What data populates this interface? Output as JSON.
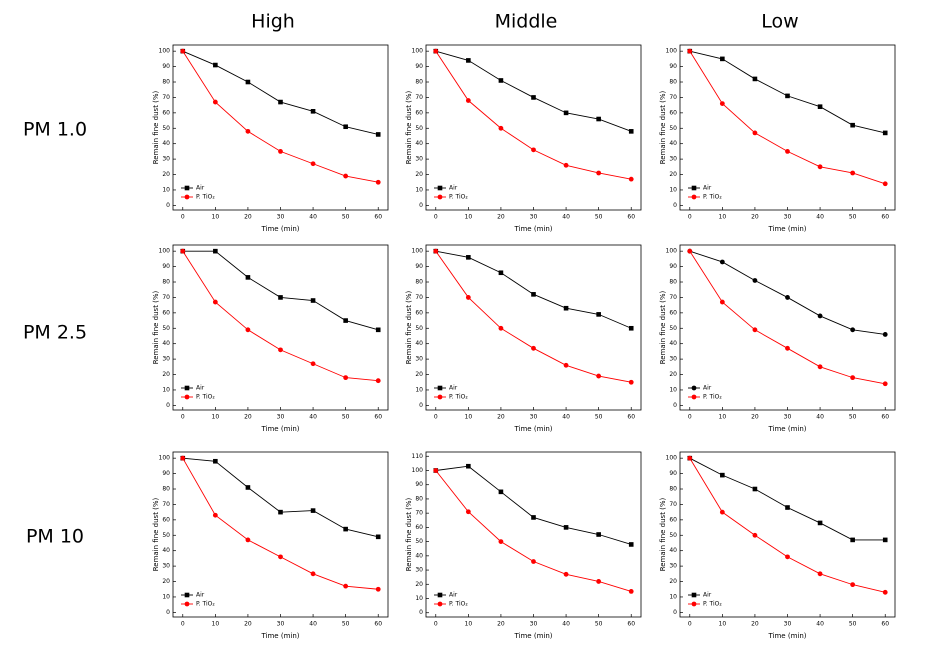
{
  "column_labels": [
    "High",
    "Middle",
    "Low"
  ],
  "row_labels": [
    "PM 1.0",
    "PM 2.5",
    "PM 10"
  ],
  "chart_data": [
    {
      "type": "line",
      "x_label": "Time (min)",
      "y_label": "Remain fine dust (%)",
      "x": [
        0,
        10,
        20,
        30,
        40,
        50,
        60
      ],
      "xlim": [
        -3,
        63
      ],
      "xticks": [
        0,
        10,
        20,
        30,
        40,
        50,
        60
      ],
      "ylim": [
        -3,
        104
      ],
      "yticks": [
        0,
        10,
        20,
        30,
        40,
        50,
        60,
        70,
        80,
        90,
        100
      ],
      "series": [
        {
          "name": "Air",
          "color": "#000000",
          "marker": "square",
          "values": [
            100,
            91,
            80,
            67,
            61,
            51,
            46
          ]
        },
        {
          "name": "P. TiO₂",
          "color": "#ff0000",
          "marker": "circle",
          "values": [
            100,
            67,
            48,
            35,
            27,
            19,
            15
          ]
        }
      ]
    },
    {
      "type": "line",
      "x_label": "Time (min)",
      "y_label": "Remain fine dust (%)",
      "x": [
        0,
        10,
        20,
        30,
        40,
        50,
        60
      ],
      "xlim": [
        -3,
        63
      ],
      "xticks": [
        0,
        10,
        20,
        30,
        40,
        50,
        60
      ],
      "ylim": [
        -3,
        104
      ],
      "yticks": [
        0,
        10,
        20,
        30,
        40,
        50,
        60,
        70,
        80,
        90,
        100
      ],
      "series": [
        {
          "name": "Air",
          "color": "#000000",
          "marker": "square",
          "values": [
            100,
            94,
            81,
            70,
            60,
            56,
            48
          ]
        },
        {
          "name": "P. TiO₂",
          "color": "#ff0000",
          "marker": "circle",
          "values": [
            100,
            68,
            50,
            36,
            26,
            21,
            17
          ]
        }
      ]
    },
    {
      "type": "line",
      "x_label": "Time (min)",
      "y_label": "Remain fine dust (%)",
      "x": [
        0,
        10,
        20,
        30,
        40,
        50,
        60
      ],
      "xlim": [
        -3,
        63
      ],
      "xticks": [
        0,
        10,
        20,
        30,
        40,
        50,
        60
      ],
      "ylim": [
        -3,
        104
      ],
      "yticks": [
        0,
        10,
        20,
        30,
        40,
        50,
        60,
        70,
        80,
        90,
        100
      ],
      "series": [
        {
          "name": "Air",
          "color": "#000000",
          "marker": "square",
          "values": [
            100,
            95,
            82,
            71,
            64,
            52,
            47
          ]
        },
        {
          "name": "P. TiO₂",
          "color": "#ff0000",
          "marker": "circle",
          "values": [
            100,
            66,
            47,
            35,
            25,
            21,
            14
          ]
        }
      ]
    },
    {
      "type": "line",
      "x_label": "Time (min)",
      "y_label": "Remain fine dust (%)",
      "x": [
        0,
        10,
        20,
        30,
        40,
        50,
        60
      ],
      "xlim": [
        -3,
        63
      ],
      "xticks": [
        0,
        10,
        20,
        30,
        40,
        50,
        60
      ],
      "ylim": [
        -3,
        104
      ],
      "yticks": [
        0,
        10,
        20,
        30,
        40,
        50,
        60,
        70,
        80,
        90,
        100
      ],
      "series": [
        {
          "name": "Air",
          "color": "#000000",
          "marker": "square",
          "values": [
            100,
            100,
            83,
            70,
            68,
            55,
            49
          ]
        },
        {
          "name": "P. TiO₂",
          "color": "#ff0000",
          "marker": "circle",
          "values": [
            100,
            67,
            49,
            36,
            27,
            18,
            16
          ]
        }
      ]
    },
    {
      "type": "line",
      "x_label": "Time (min)",
      "y_label": "Remain fine dust (%)",
      "x": [
        0,
        10,
        20,
        30,
        40,
        50,
        60
      ],
      "xlim": [
        -3,
        63
      ],
      "xticks": [
        0,
        10,
        20,
        30,
        40,
        50,
        60
      ],
      "ylim": [
        -3,
        104
      ],
      "yticks": [
        0,
        10,
        20,
        30,
        40,
        50,
        60,
        70,
        80,
        90,
        100
      ],
      "series": [
        {
          "name": "Air",
          "color": "#000000",
          "marker": "square",
          "values": [
            100,
            96,
            86,
            72,
            63,
            59,
            50
          ]
        },
        {
          "name": "P. TiO₂",
          "color": "#ff0000",
          "marker": "circle",
          "values": [
            100,
            70,
            50,
            37,
            26,
            19,
            15
          ]
        }
      ]
    },
    {
      "type": "line",
      "x_label": "Time (min)",
      "y_label": "Remain fine dust (%)",
      "x": [
        0,
        10,
        20,
        30,
        40,
        50,
        60
      ],
      "xlim": [
        -3,
        63
      ],
      "xticks": [
        0,
        10,
        20,
        30,
        40,
        50,
        60
      ],
      "ylim": [
        -3,
        104
      ],
      "yticks": [
        0,
        10,
        20,
        30,
        40,
        50,
        60,
        70,
        80,
        90,
        100
      ],
      "series": [
        {
          "name": "Air",
          "color": "#000000",
          "marker": "circle",
          "values": [
            100,
            93,
            81,
            70,
            58,
            49,
            46
          ]
        },
        {
          "name": "P. TiO₂",
          "color": "#ff0000",
          "marker": "circle",
          "values": [
            100,
            67,
            49,
            37,
            25,
            18,
            14
          ]
        }
      ]
    },
    {
      "type": "line",
      "x_label": "Time (min)",
      "y_label": "Remain fine dust (%)",
      "x": [
        0,
        10,
        20,
        30,
        40,
        50,
        60
      ],
      "xlim": [
        -3,
        63
      ],
      "xticks": [
        0,
        10,
        20,
        30,
        40,
        50,
        60
      ],
      "ylim": [
        -3,
        104
      ],
      "yticks": [
        0,
        10,
        20,
        30,
        40,
        50,
        60,
        70,
        80,
        90,
        100
      ],
      "series": [
        {
          "name": "Air",
          "color": "#000000",
          "marker": "square",
          "values": [
            100,
            98,
            81,
            65,
            66,
            54,
            49
          ]
        },
        {
          "name": "P. TiO₂",
          "color": "#ff0000",
          "marker": "circle",
          "values": [
            100,
            63,
            47,
            36,
            25,
            17,
            15
          ]
        }
      ]
    },
    {
      "type": "line",
      "x_label": "Time (min)",
      "y_label": "Remain fine dust (%)",
      "x": [
        0,
        10,
        20,
        30,
        40,
        50,
        60
      ],
      "xlim": [
        -3,
        63
      ],
      "xticks": [
        0,
        10,
        20,
        30,
        40,
        50,
        60
      ],
      "ylim": [
        -3,
        113
      ],
      "yticks": [
        0,
        10,
        20,
        30,
        40,
        50,
        60,
        70,
        80,
        90,
        100,
        110
      ],
      "series": [
        {
          "name": "Air",
          "color": "#000000",
          "marker": "square",
          "values": [
            100,
            103,
            85,
            67,
            60,
            55,
            48
          ]
        },
        {
          "name": "P. TiO₂",
          "color": "#ff0000",
          "marker": "circle",
          "values": [
            100,
            71,
            50,
            36,
            27,
            22,
            15
          ]
        }
      ]
    },
    {
      "type": "line",
      "x_label": "Time (min)",
      "y_label": "Remain fine dust (%)",
      "x": [
        0,
        10,
        20,
        30,
        40,
        50,
        60
      ],
      "xlim": [
        -3,
        63
      ],
      "xticks": [
        0,
        10,
        20,
        30,
        40,
        50,
        60
      ],
      "ylim": [
        -3,
        104
      ],
      "yticks": [
        0,
        10,
        20,
        30,
        40,
        50,
        60,
        70,
        80,
        90,
        100
      ],
      "series": [
        {
          "name": "Air",
          "color": "#000000",
          "marker": "square",
          "values": [
            100,
            89,
            80,
            68,
            58,
            47,
            47
          ]
        },
        {
          "name": "P. TiO₂",
          "color": "#ff0000",
          "marker": "circle",
          "values": [
            100,
            65,
            50,
            36,
            25,
            18,
            13
          ]
        }
      ]
    }
  ]
}
